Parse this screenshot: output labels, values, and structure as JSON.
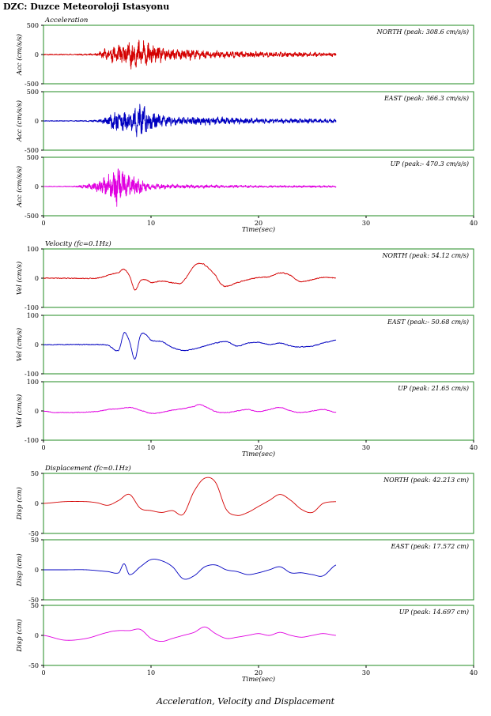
{
  "title": "DZC: Duzce Meteoroloji Istasyonu",
  "caption": "Acceleration, Velocity and Displacement",
  "chart_data": {
    "type": "line",
    "xlabel": "Time(sec)",
    "xlim": [
      0,
      40
    ],
    "xticks": [
      "0",
      "10",
      "20",
      "30",
      "40"
    ],
    "record_end": 27.2,
    "groups": [
      {
        "label": "Acceleration",
        "ylabel": "Acc (cm/s/s)",
        "ylim": [
          -500,
          500
        ],
        "yticks": [
          "500",
          "0",
          "-500"
        ],
        "panels": [
          {
            "component": "NORTH",
            "legend": "NORTH (peak: 308.6 cm/s/s)",
            "peak": 308.6,
            "color": "#d40000",
            "seed": 11,
            "kind": "acc",
            "envelope": [
              [
                0,
                10
              ],
              [
                3,
                12
              ],
              [
                5,
                25
              ],
              [
                6,
                150
              ],
              [
                8,
                280
              ],
              [
                9,
                300
              ],
              [
                10,
                200
              ],
              [
                12,
                120
              ],
              [
                15,
                110
              ],
              [
                16,
                80
              ],
              [
                20,
                60
              ],
              [
                27.2,
                40
              ]
            ]
          },
          {
            "component": "EAST",
            "legend": "EAST (peak: 366.3 cm/s/s)",
            "peak": 366.3,
            "color": "#0000c0",
            "seed": 23,
            "kind": "acc",
            "envelope": [
              [
                0,
                8
              ],
              [
                3,
                10
              ],
              [
                5,
                20
              ],
              [
                6,
                100
              ],
              [
                7,
                300
              ],
              [
                8,
                180
              ],
              [
                9,
                360
              ],
              [
                10,
                200
              ],
              [
                12,
                90
              ],
              [
                16,
                80
              ],
              [
                20,
                60
              ],
              [
                27.2,
                40
              ]
            ]
          },
          {
            "component": "UP",
            "legend": "UP (peak:- 470.3 cm/s/s)",
            "peak": -470.3,
            "color": "#e000e0",
            "seed": 37,
            "kind": "acc",
            "envelope": [
              [
                0,
                6
              ],
              [
                3,
                12
              ],
              [
                4.5,
                80
              ],
              [
                6,
                230
              ],
              [
                7,
                460
              ],
              [
                8,
                250
              ],
              [
                10,
                60
              ],
              [
                13,
                40
              ],
              [
                20,
                25
              ],
              [
                27.2,
                20
              ]
            ]
          }
        ]
      },
      {
        "label": "Velocity  (fc=0.1Hz)",
        "ylabel": "Vel (cm/s)",
        "ylim": [
          -100,
          100
        ],
        "yticks": [
          "100",
          "0",
          "-100"
        ],
        "panels": [
          {
            "component": "NORTH",
            "legend": "NORTH (peak: 54.12 cm/s)",
            "peak": 54.12,
            "color": "#d40000",
            "seed": 41,
            "kind": "wave",
            "noise": 2.5,
            "trace": [
              [
                0,
                0
              ],
              [
                2,
                0
              ],
              [
                5,
                0
              ],
              [
                6,
                10
              ],
              [
                7,
                20
              ],
              [
                7.5,
                30
              ],
              [
                8,
                8
              ],
              [
                8.5,
                -40
              ],
              [
                9,
                -10
              ],
              [
                9.5,
                -5
              ],
              [
                10,
                -15
              ],
              [
                11,
                -10
              ],
              [
                12.5,
                -18
              ],
              [
                13,
                -10
              ],
              [
                14,
                40
              ],
              [
                14.5,
                50
              ],
              [
                15,
                45
              ],
              [
                16,
                10
              ],
              [
                16.5,
                -20
              ],
              [
                17,
                -28
              ],
              [
                18,
                -15
              ],
              [
                19,
                -5
              ],
              [
                20,
                2
              ],
              [
                21,
                5
              ],
              [
                22,
                18
              ],
              [
                23,
                10
              ],
              [
                23.5,
                -5
              ],
              [
                24,
                -12
              ],
              [
                25,
                -5
              ],
              [
                26,
                3
              ],
              [
                27.2,
                0
              ]
            ]
          },
          {
            "component": "EAST",
            "legend": "EAST (peak:- 50.68 cm/s)",
            "peak": -50.68,
            "color": "#0000c0",
            "seed": 53,
            "kind": "wave",
            "noise": 2.5,
            "trace": [
              [
                0,
                0
              ],
              [
                4,
                0
              ],
              [
                6,
                -2
              ],
              [
                7,
                -20
              ],
              [
                7.5,
                40
              ],
              [
                8,
                10
              ],
              [
                8.5,
                -50
              ],
              [
                9,
                30
              ],
              [
                9.5,
                35
              ],
              [
                10,
                15
              ],
              [
                11,
                10
              ],
              [
                12,
                -10
              ],
              [
                13,
                -20
              ],
              [
                14,
                -15
              ],
              [
                15,
                -5
              ],
              [
                16,
                5
              ],
              [
                17,
                10
              ],
              [
                18,
                -5
              ],
              [
                19,
                5
              ],
              [
                20,
                8
              ],
              [
                21,
                0
              ],
              [
                22,
                5
              ],
              [
                23,
                -5
              ],
              [
                24,
                -8
              ],
              [
                25,
                -5
              ],
              [
                26,
                5
              ],
              [
                27.2,
                15
              ]
            ]
          },
          {
            "component": "UP",
            "legend": "UP (peak: 21.65 cm/s)",
            "peak": 21.65,
            "color": "#e000e0",
            "seed": 67,
            "kind": "wave",
            "noise": 2.0,
            "trace": [
              [
                0,
                0
              ],
              [
                1,
                -5
              ],
              [
                3,
                -5
              ],
              [
                5,
                -2
              ],
              [
                6,
                5
              ],
              [
                7,
                8
              ],
              [
                8,
                12
              ],
              [
                9,
                3
              ],
              [
                10,
                -8
              ],
              [
                11,
                -5
              ],
              [
                12,
                3
              ],
              [
                13,
                8
              ],
              [
                14,
                15
              ],
              [
                14.5,
                22
              ],
              [
                15,
                15
              ],
              [
                16,
                -2
              ],
              [
                17,
                -5
              ],
              [
                18,
                0
              ],
              [
                19,
                5
              ],
              [
                20,
                -2
              ],
              [
                21,
                5
              ],
              [
                22,
                12
              ],
              [
                23,
                0
              ],
              [
                24,
                -5
              ],
              [
                25,
                0
              ],
              [
                26,
                5
              ],
              [
                27.2,
                -5
              ]
            ]
          }
        ]
      },
      {
        "label": "Displacement  (fc=0.1Hz)",
        "ylabel": "Disp (cm)",
        "ylim": [
          -50,
          50
        ],
        "yticks": [
          "50",
          "0",
          "-50"
        ],
        "panels": [
          {
            "component": "NORTH",
            "legend": "NORTH (peak: 42.213 cm)",
            "peak": 42.213,
            "color": "#d40000",
            "kind": "smooth",
            "trace": [
              [
                0,
                0
              ],
              [
                2,
                3
              ],
              [
                4,
                3
              ],
              [
                5,
                1
              ],
              [
                6,
                -3
              ],
              [
                7,
                5
              ],
              [
                8,
                15
              ],
              [
                9,
                -8
              ],
              [
                10,
                -12
              ],
              [
                11,
                -15
              ],
              [
                12,
                -12
              ],
              [
                13,
                -18
              ],
              [
                14,
                20
              ],
              [
                15,
                42
              ],
              [
                16,
                35
              ],
              [
                17,
                -10
              ],
              [
                18,
                -20
              ],
              [
                19,
                -15
              ],
              [
                20,
                -5
              ],
              [
                21,
                5
              ],
              [
                22,
                15
              ],
              [
                23,
                5
              ],
              [
                24,
                -10
              ],
              [
                25,
                -15
              ],
              [
                26,
                0
              ],
              [
                27.2,
                3
              ]
            ]
          },
          {
            "component": "EAST",
            "legend": "EAST (peak: 17.572 cm)",
            "peak": 17.572,
            "color": "#0000c0",
            "kind": "smooth",
            "trace": [
              [
                0,
                0
              ],
              [
                2,
                0
              ],
              [
                4,
                0
              ],
              [
                6,
                -3
              ],
              [
                7,
                -5
              ],
              [
                7.5,
                10
              ],
              [
                8,
                -8
              ],
              [
                9,
                5
              ],
              [
                10,
                17
              ],
              [
                11,
                15
              ],
              [
                12,
                5
              ],
              [
                13,
                -15
              ],
              [
                14,
                -10
              ],
              [
                15,
                5
              ],
              [
                16,
                8
              ],
              [
                17,
                0
              ],
              [
                18,
                -3
              ],
              [
                19,
                -8
              ],
              [
                20,
                -5
              ],
              [
                21,
                0
              ],
              [
                22,
                5
              ],
              [
                23,
                -5
              ],
              [
                24,
                -5
              ],
              [
                25,
                -8
              ],
              [
                26,
                -10
              ],
              [
                27.2,
                8
              ]
            ]
          },
          {
            "component": "UP",
            "legend": "UP (peak: 14.697 cm)",
            "peak": 14.697,
            "color": "#e000e0",
            "kind": "smooth",
            "trace": [
              [
                0,
                0
              ],
              [
                2,
                -8
              ],
              [
                4,
                -5
              ],
              [
                6,
                5
              ],
              [
                7,
                8
              ],
              [
                8,
                8
              ],
              [
                9,
                10
              ],
              [
                10,
                -5
              ],
              [
                11,
                -10
              ],
              [
                12,
                -5
              ],
              [
                13,
                0
              ],
              [
                14,
                5
              ],
              [
                15,
                14
              ],
              [
                16,
                3
              ],
              [
                17,
                -5
              ],
              [
                18,
                -3
              ],
              [
                19,
                0
              ],
              [
                20,
                3
              ],
              [
                21,
                0
              ],
              [
                22,
                5
              ],
              [
                23,
                0
              ],
              [
                24,
                -3
              ],
              [
                25,
                0
              ],
              [
                26,
                3
              ],
              [
                27.2,
                0
              ]
            ]
          }
        ]
      }
    ]
  }
}
